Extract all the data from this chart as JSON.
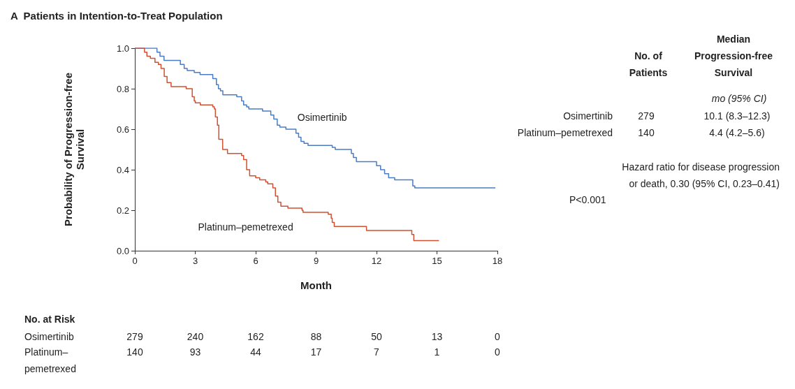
{
  "chart_data": {
    "type": "step",
    "title": "A  Patients in Intention-to-Treat Population",
    "xlabel": "Month",
    "ylabel": "Probability of Progression-free\nSurvival",
    "xlim": [
      0,
      18
    ],
    "xticks": [
      0,
      3,
      6,
      9,
      12,
      15,
      18
    ],
    "ylim": [
      0,
      1
    ],
    "yticks": [
      {
        "value": 0,
        "label": "0.0"
      },
      {
        "value": 0.2,
        "label": "0.2"
      },
      {
        "value": 0.4,
        "label": "0.4"
      },
      {
        "value": 0.6,
        "label": "0.6"
      },
      {
        "value": 0.8,
        "label": "0.8"
      },
      {
        "value": 1,
        "label": "1.0"
      }
    ],
    "marker": "none",
    "line_style": "solid",
    "series": [
      {
        "name": "Osimertinib",
        "color": "#4a7cc4",
        "x": [
          0,
          1.1,
          1.25,
          1.45,
          2.26,
          2.45,
          2.6,
          2.95,
          3.24,
          3.87,
          4.05,
          4.15,
          4.25,
          4.37,
          5.06,
          5.3,
          5.4,
          5.55,
          5.66,
          6.34,
          6.75,
          6.9,
          7.07,
          7.2,
          7.5,
          8.0,
          8.13,
          8.25,
          8.4,
          8.6,
          9.8,
          9.95,
          10.75,
          10.85,
          11.0,
          12.0,
          12.2,
          12.4,
          12.6,
          12.9,
          13.8,
          13.9,
          17.9
        ],
        "values": [
          1.0,
          0.98,
          0.96,
          0.94,
          0.92,
          0.9,
          0.89,
          0.88,
          0.87,
          0.85,
          0.82,
          0.8,
          0.79,
          0.77,
          0.76,
          0.74,
          0.72,
          0.71,
          0.7,
          0.69,
          0.67,
          0.65,
          0.62,
          0.61,
          0.6,
          0.58,
          0.56,
          0.54,
          0.53,
          0.52,
          0.51,
          0.5,
          0.48,
          0.46,
          0.44,
          0.42,
          0.4,
          0.38,
          0.36,
          0.35,
          0.32,
          0.31,
          0.31
        ]
      },
      {
        "name": "Platinum–pemetrexed",
        "color": "#d0502f",
        "x": [
          0,
          0.48,
          0.6,
          0.77,
          1.0,
          1.17,
          1.3,
          1.46,
          1.6,
          1.8,
          2.55,
          2.85,
          2.95,
          3.0,
          3.25,
          3.87,
          3.95,
          4.0,
          4.1,
          4.17,
          4.36,
          4.6,
          5.3,
          5.4,
          5.55,
          5.7,
          6.0,
          6.2,
          6.5,
          6.6,
          6.85,
          6.98,
          7.1,
          7.25,
          7.6,
          8.3,
          8.35,
          9.6,
          9.75,
          9.8,
          9.9,
          11.5,
          13.75,
          13.85,
          15.1
        ],
        "values": [
          1.0,
          0.98,
          0.96,
          0.95,
          0.93,
          0.92,
          0.9,
          0.86,
          0.83,
          0.81,
          0.8,
          0.76,
          0.74,
          0.73,
          0.72,
          0.71,
          0.7,
          0.66,
          0.62,
          0.55,
          0.5,
          0.48,
          0.47,
          0.45,
          0.4,
          0.37,
          0.36,
          0.35,
          0.34,
          0.33,
          0.31,
          0.27,
          0.24,
          0.22,
          0.21,
          0.2,
          0.19,
          0.18,
          0.16,
          0.14,
          0.12,
          0.1,
          0.08,
          0.05,
          0.05
        ]
      }
    ],
    "annotations": [
      "No. of\nPatients",
      "Median\nProgression-free\nSurvival",
      "mo (95% CI)",
      "Osimertinib",
      "279",
      "10.1 (8.3–12.3)",
      "Platinum–pemetrexed",
      "140",
      "4.4 (4.2–5.6)",
      "Hazard ratio for disease progression\nor death, 0.30 (95% CI, 0.23–0.41)",
      "P<0.001",
      "No. at Risk",
      "Osimertinib",
      "Platinum–\npemetrexed",
      "279",
      "240",
      "162",
      "88",
      "50",
      "13",
      "0",
      "140",
      "93",
      "44",
      "17",
      "7",
      "1",
      "0"
    ]
  }
}
